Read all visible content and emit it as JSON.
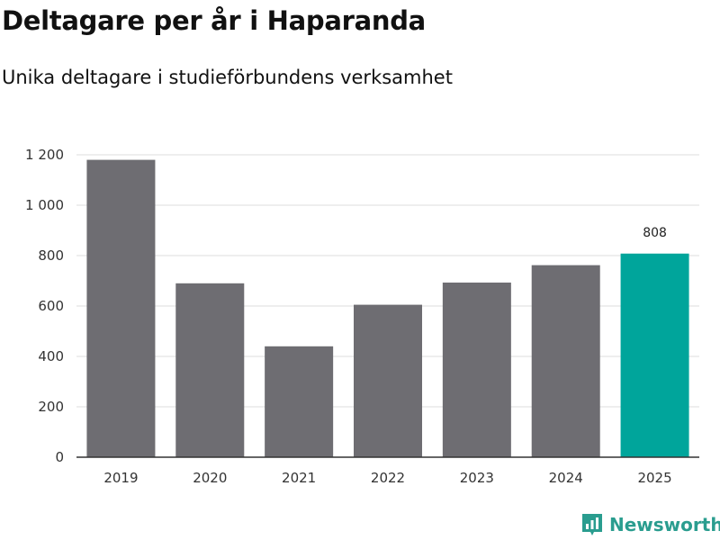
{
  "chart_data": {
    "type": "bar",
    "title": "Deltagare per år i Haparanda",
    "subtitle": "Unika deltagare i studieförbundens verksamhet",
    "categories": [
      "2019",
      "2020",
      "2021",
      "2022",
      "2023",
      "2024",
      "2025"
    ],
    "values": [
      1180,
      690,
      440,
      605,
      693,
      762,
      808
    ],
    "highlight_index": 6,
    "highlight_label": "808",
    "ylim": [
      0,
      1200
    ],
    "yticks": [
      0,
      200,
      400,
      600,
      800,
      1000,
      1200
    ],
    "ytick_labels": [
      "0",
      "200",
      "400",
      "600",
      "800",
      "1 000",
      "1 200"
    ],
    "xlabel": "",
    "ylabel": "",
    "grid": true,
    "colors": {
      "bar": "#6e6d72",
      "highlight": "#00a59b",
      "grid": "#dddddd",
      "axis": "#333333"
    }
  },
  "brand": {
    "name": "Newsworthy",
    "color": "#2a9d8f"
  }
}
